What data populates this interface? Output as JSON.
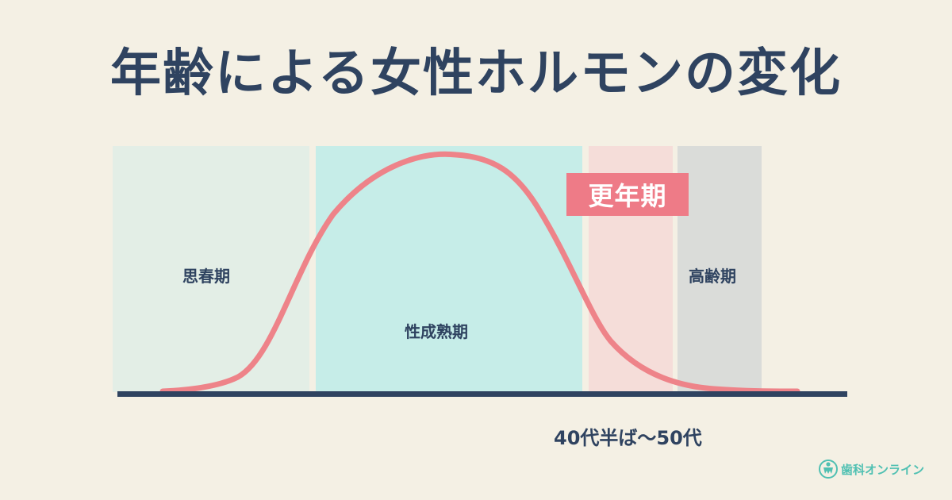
{
  "title": "年齢による女性ホルモンの変化",
  "phases": [
    {
      "label": "思春期",
      "color": "#e3eee6"
    },
    {
      "label": "性成熟期",
      "color": "#c6ede8"
    },
    {
      "label": "更年期",
      "color": "#f5ddd9"
    },
    {
      "label": "高齢期",
      "color": "#dadcd9"
    }
  ],
  "menopause_badge": "更年期",
  "age_note": "40代半ば〜50代",
  "curve_color": "#ee8389",
  "axis_color": "#2f4360",
  "logo": {
    "text": "歯科オンライン",
    "icon": "tooth-person-icon"
  }
}
